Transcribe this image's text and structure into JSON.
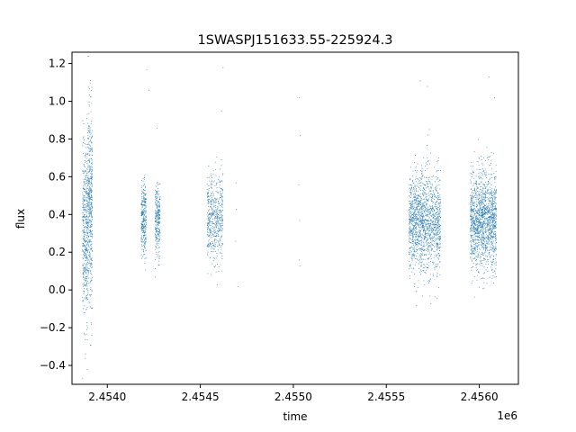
{
  "chart_data": {
    "type": "scatter",
    "title": "1SWASPJ151633.55-225924.3",
    "xlabel": "time",
    "ylabel": "flux",
    "x_offset_label": "1e6",
    "xlim": [
      2453810,
      2456210
    ],
    "ylim": [
      -0.5,
      1.26
    ],
    "x_ticks": [
      2454000,
      2454500,
      2455000,
      2455500,
      2456000
    ],
    "x_tick_labels": [
      "2.4540",
      "2.4545",
      "2.4550",
      "2.4555",
      "2.4560"
    ],
    "y_ticks": [
      -0.4,
      -0.2,
      0.0,
      0.2,
      0.4,
      0.6,
      0.8,
      1.0,
      1.2
    ],
    "y_tick_labels": [
      "−0.4",
      "−0.2",
      "0.0",
      "0.2",
      "0.4",
      "0.6",
      "0.8",
      "1.0",
      "1.2"
    ],
    "grid": false,
    "marker_color": "#1f77b4",
    "series": [
      {
        "clusters": [
          {
            "x_range": [
              2453865,
              2453892
            ],
            "y_center": 0.3,
            "y_spread": 0.22,
            "count": 420
          },
          {
            "x_range": [
              2453892,
              2453918
            ],
            "y_center": 0.45,
            "y_spread": 0.26,
            "count": 480
          },
          {
            "x_range": [
              2454180,
              2454207
            ],
            "y_center": 0.37,
            "y_spread": 0.1,
            "count": 300
          },
          {
            "x_range": [
              2454255,
              2454282
            ],
            "y_center": 0.37,
            "y_spread": 0.09,
            "count": 260
          },
          {
            "x_range": [
              2454535,
              2454620
            ],
            "y_center": 0.38,
            "y_spread": 0.12,
            "count": 520
          },
          {
            "x_range": [
              2455620,
              2455790
            ],
            "y_center": 0.36,
            "y_spread": 0.13,
            "count": 1500
          },
          {
            "x_range": [
              2455950,
              2456090
            ],
            "y_center": 0.37,
            "y_spread": 0.13,
            "count": 1500
          }
        ],
        "outliers": [
          {
            "x": 2453880,
            "y": -0.36
          },
          {
            "x": 2453890,
            "y": -0.42
          },
          {
            "x": 2453872,
            "y": -0.12
          },
          {
            "x": 2454210,
            "y": 1.17
          },
          {
            "x": 2454222,
            "y": 1.06
          },
          {
            "x": 2454265,
            "y": 0.86
          },
          {
            "x": 2454620,
            "y": 1.18
          },
          {
            "x": 2454612,
            "y": 0.95
          },
          {
            "x": 2454690,
            "y": 0.57
          },
          {
            "x": 2454692,
            "y": 0.43
          },
          {
            "x": 2454688,
            "y": 0.26
          },
          {
            "x": 2454700,
            "y": 0.02
          },
          {
            "x": 2455030,
            "y": 1.02
          },
          {
            "x": 2455035,
            "y": 0.82
          },
          {
            "x": 2455028,
            "y": 0.56
          },
          {
            "x": 2455032,
            "y": 0.37
          },
          {
            "x": 2455030,
            "y": 0.16
          },
          {
            "x": 2455033,
            "y": 0.13
          },
          {
            "x": 2455680,
            "y": 1.11
          },
          {
            "x": 2455720,
            "y": 1.08
          },
          {
            "x": 2456050,
            "y": 1.13
          },
          {
            "x": 2456080,
            "y": 1.02
          }
        ]
      }
    ]
  }
}
